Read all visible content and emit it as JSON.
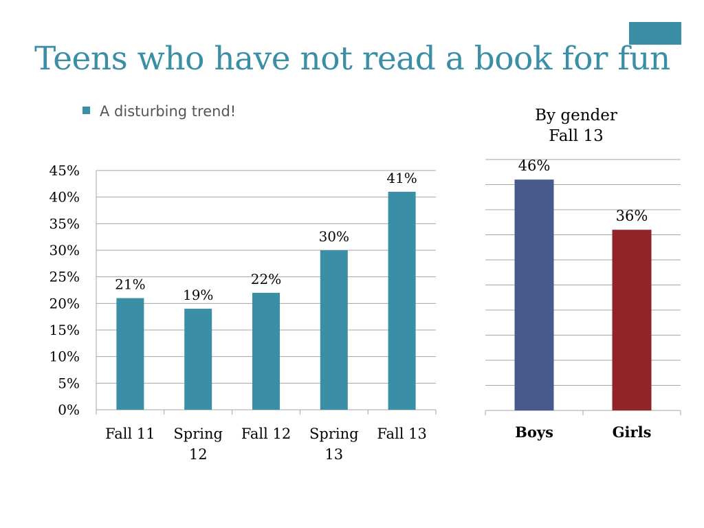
{
  "slide": {
    "title": "Teens who have not read a book for fun",
    "bullet": "A disturbing trend!"
  },
  "colors": {
    "accent": "#3a8fa6",
    "boys": "#48598b",
    "girls": "#922427",
    "bullet_text": "#555555",
    "grid": "#a6a6a6"
  },
  "chart_data": [
    {
      "type": "bar",
      "title": "",
      "categories": [
        "Fall 11",
        "Spring 12",
        "Fall 12",
        "Spring 13",
        "Fall 13"
      ],
      "series": [
        {
          "values": [
            21,
            19,
            22,
            30,
            41
          ],
          "labels": [
            "21%",
            "19%",
            "22%",
            "30%",
            "41%"
          ],
          "color": "#3a8fa6"
        }
      ],
      "ylim": [
        0,
        45
      ],
      "yticks": [
        "0%",
        "5%",
        "10%",
        "15%",
        "20%",
        "25%",
        "30%",
        "35%",
        "40%",
        "45%"
      ],
      "xlabel": "",
      "ylabel": "",
      "grid": true,
      "legend": "none"
    },
    {
      "type": "bar",
      "title": "By gender\nFall 13",
      "categories": [
        "Boys",
        "Girls"
      ],
      "series": [
        {
          "values": [
            46,
            36
          ],
          "labels": [
            "46%",
            "36%"
          ],
          "colors": [
            "#48598b",
            "#922427"
          ]
        }
      ],
      "ylim": [
        0,
        50
      ],
      "yticks": [],
      "xlabel": "",
      "ylabel": "",
      "grid": true,
      "legend": "none"
    }
  ]
}
